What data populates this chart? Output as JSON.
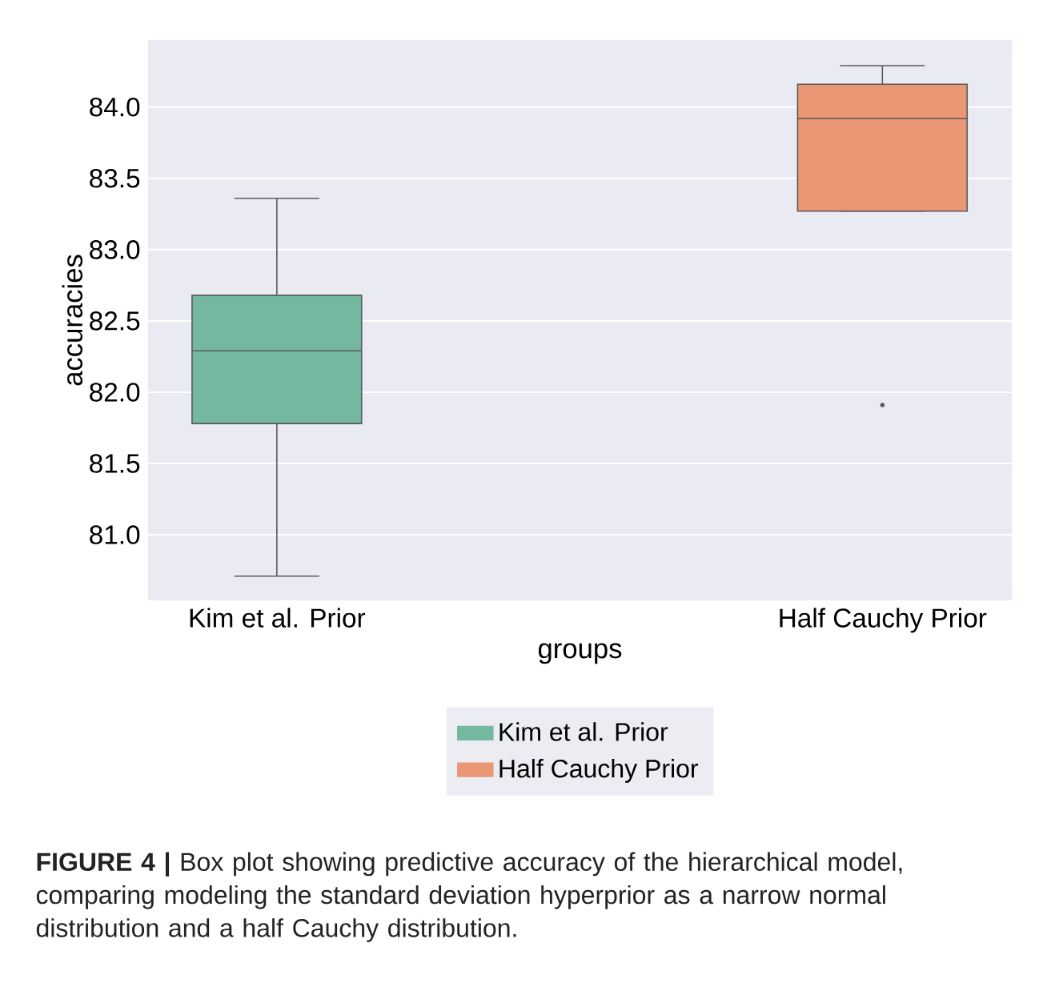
{
  "chart_data": {
    "type": "box",
    "xlabel": "groups",
    "ylabel": "accuracies",
    "categories": [
      "Kim et al. Prior",
      "Half Cauchy Prior"
    ],
    "series": [
      {
        "name": "Kim et al. Prior",
        "color": "#74b8a0",
        "boxes": [
          {
            "low": 80.71,
            "q1": 81.78,
            "median": 82.29,
            "q3": 82.68,
            "high": 83.36
          },
          null
        ]
      },
      {
        "name": "Half Cauchy Prior",
        "color": "#e99775",
        "boxes": [
          null,
          {
            "low": 83.27,
            "q1": 83.27,
            "median": 83.92,
            "q3": 84.16,
            "high": 84.29,
            "outliers": [
              81.91
            ]
          }
        ]
      }
    ],
    "ylim": [
      80.54,
      84.47
    ],
    "yticks": [
      {
        "value": 81,
        "label": "81.0"
      },
      81.5,
      {
        "value": 82,
        "label": "82.0"
      },
      82.5,
      {
        "value": 83,
        "label": "83.0"
      },
      83.5,
      {
        "value": 84,
        "label": "84.0"
      }
    ],
    "grid": "y",
    "legend": "bottom",
    "annotations": [
      "**FIGURE 4 |** Box plot showing predictive accuracy of the hierarchical model, comparing modeling the standard deviation hyperprior as a narrow normal distribution and a half Cauchy distribution."
    ]
  }
}
